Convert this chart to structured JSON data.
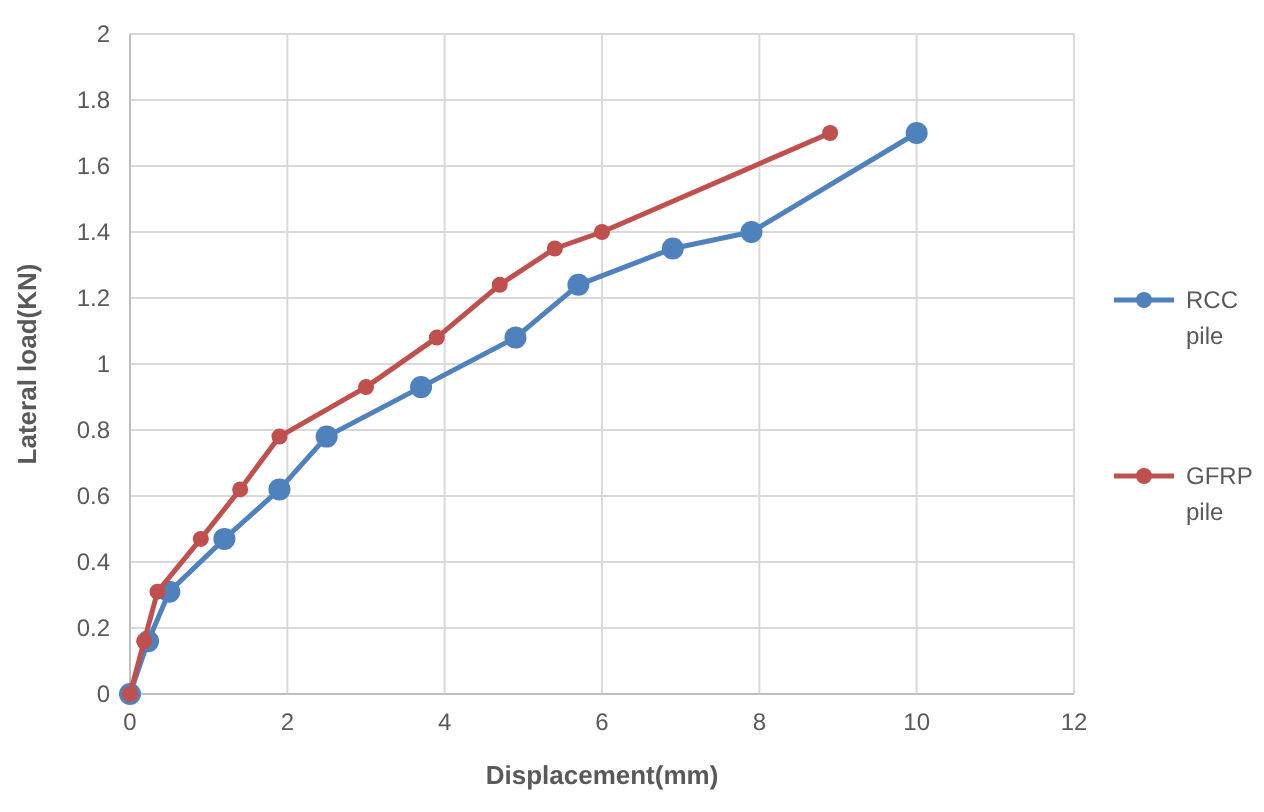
{
  "chart_data": {
    "type": "line",
    "xlabel": "Displacement(mm)",
    "ylabel": "Lateral load(KN)",
    "xlim": [
      0,
      12
    ],
    "xticks": [
      0,
      2,
      4,
      6,
      8,
      10,
      12
    ],
    "ylim": [
      0,
      2
    ],
    "yticks": [
      0,
      {
        "value": 0.2,
        "label": "0.2"
      },
      {
        "value": 0.4,
        "label": "0.4"
      },
      {
        "value": 0.6,
        "label": "0.6"
      },
      {
        "value": 0.8,
        "label": "0.8"
      },
      1,
      {
        "value": 1.2,
        "label": "1.2"
      },
      {
        "value": 1.4,
        "label": "1.4"
      },
      {
        "value": 1.6,
        "label": "1.6"
      },
      {
        "value": 1.8,
        "label": "1.8"
      },
      2
    ],
    "grid": true,
    "legend": "right",
    "marker": "circle",
    "line_style": "solid",
    "series": [
      {
        "name": "RCC pile",
        "color": "#4f81bd",
        "x": [
          0,
          0.23,
          0.5,
          1.2,
          1.9,
          2.5,
          3.7,
          4.9,
          5.7,
          6.9,
          7.9,
          10
        ],
        "values": [
          0,
          0.16,
          0.31,
          0.47,
          0.62,
          0.78,
          0.93,
          1.08,
          1.24,
          1.35,
          1.4,
          1.7
        ]
      },
      {
        "name": "GFRP pile",
        "color": "#c0504d",
        "x": [
          0,
          0.18,
          0.35,
          0.9,
          1.4,
          1.9,
          3,
          3.9,
          4.7,
          5.4,
          6,
          8.9
        ],
        "values": [
          0,
          0.16,
          0.31,
          0.47,
          0.62,
          0.78,
          0.93,
          1.08,
          1.24,
          1.35,
          1.4,
          1.7
        ]
      }
    ]
  }
}
